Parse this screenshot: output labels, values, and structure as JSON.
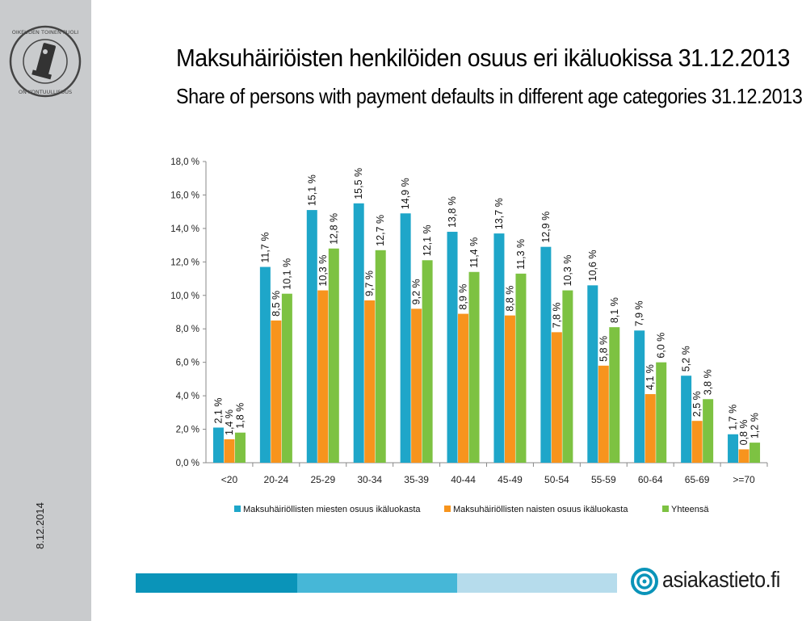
{
  "sidebar": {
    "date": "8.12.2014",
    "stamp_text": "OIKEUDEN TOINEN PUOLI ON KONTUULLISUUS"
  },
  "title": "Maksuhäiriöisten henkilöiden osuus eri ikäluokissa 31.12.2013",
  "subtitle": "Share of persons with payment defaults in different age categories 31.12.2013",
  "logo": {
    "text": "asiakastieto.fi"
  },
  "colors": {
    "men": "#1ea6c9",
    "women": "#f7941d",
    "total": "#7dc242",
    "footer_dark": "#0a94b9",
    "footer_mid": "#46b7d7",
    "footer_light": "#b6dcec",
    "sidebar": "#c9cbcd"
  },
  "chart_data": {
    "type": "bar",
    "categories": [
      "<20",
      "20-24",
      "25-29",
      "30-34",
      "35-39",
      "40-44",
      "45-49",
      "50-54",
      "55-59",
      "60-64",
      "65-69",
      ">=70"
    ],
    "series": [
      {
        "name": "Maksuhäiriöllisten miesten osuus ikäluokasta",
        "values": [
          2.1,
          11.7,
          15.1,
          15.5,
          14.9,
          13.8,
          13.7,
          12.9,
          10.6,
          7.9,
          5.2,
          1.7
        ],
        "labels": [
          "2,1 %",
          "11,7 %",
          "15,1 %",
          "15,5 %",
          "14,9 %",
          "13,8 %",
          "13,7 %",
          "12,9 %",
          "10,6 %",
          "7,9 %",
          "5,2 %",
          "1,7 %"
        ]
      },
      {
        "name": "Maksuhäiriöllisten naisten osuus ikäluokasta",
        "values": [
          1.4,
          8.5,
          10.3,
          9.7,
          9.2,
          8.9,
          8.8,
          7.8,
          5.8,
          4.1,
          2.5,
          0.8
        ],
        "labels": [
          "1,4 %",
          "8,5 %",
          "10,3 %",
          "9,7 %",
          "9,2 %",
          "8,9 %",
          "8,8 %",
          "7,8 %",
          "5,8 %",
          "4,1 %",
          "2,5 %",
          "0,8 %"
        ]
      },
      {
        "name": "Yhteensä",
        "values": [
          1.8,
          10.1,
          12.8,
          12.7,
          12.1,
          11.4,
          11.3,
          10.3,
          8.1,
          6.0,
          3.8,
          1.2
        ],
        "labels": [
          "1,8 %",
          "10,1 %",
          "12,8 %",
          "12,7 %",
          "12,1 %",
          "11,4 %",
          "11,3 %",
          "10,3 %",
          "8,1 %",
          "6,0 %",
          "3,8 %",
          "1,2 %"
        ]
      }
    ],
    "yticks": [
      "0,0 %",
      "2,0 %",
      "4,0 %",
      "6,0 %",
      "8,0 %",
      "10,0 %",
      "12,0 %",
      "14,0 %",
      "16,0 %",
      "18,0 %"
    ],
    "ylim": [
      0,
      18
    ],
    "grid": false,
    "legend_position": "bottom"
  }
}
